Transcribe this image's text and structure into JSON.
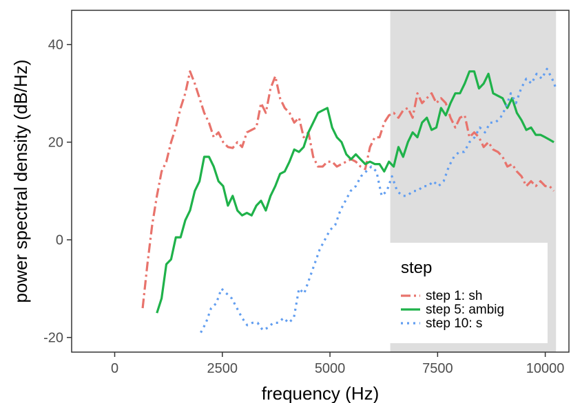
{
  "chart_data": {
    "type": "line",
    "xlabel": "frequency (Hz)",
    "ylabel": "power spectral density (dB/Hz)",
    "xlim": [
      -1000,
      10550
    ],
    "ylim": [
      -23,
      47
    ],
    "x_ticks": [
      0,
      2500,
      5000,
      7500,
      10000
    ],
    "y_ticks": [
      -20,
      0,
      20,
      40
    ],
    "x_tick_labels": [
      "0",
      "2500",
      "5000",
      "7500",
      "10000"
    ],
    "y_tick_labels": [
      "-20",
      "0",
      "20",
      "40"
    ],
    "grid": false,
    "shaded_region": {
      "x_start": 6400,
      "x_end": 10250,
      "color": "#dedede"
    },
    "legend": {
      "title": "step",
      "position": "bottom-right",
      "entries": [
        {
          "label": "step 1: sh",
          "color": "#e8736c",
          "dash": "dashdot"
        },
        {
          "label": "step 5: ambig",
          "color": "#1fb24a",
          "dash": "solid"
        },
        {
          "label": "step 10: s",
          "color": "#629ef0",
          "dash": "dotted"
        }
      ]
    },
    "series": [
      {
        "name": "step 1: sh",
        "color": "#e8736c",
        "dash": "dashdot",
        "points": [
          [
            650,
            -14
          ],
          [
            760,
            -5
          ],
          [
            870,
            3
          ],
          [
            980,
            9
          ],
          [
            1090,
            14
          ],
          [
            1200,
            16
          ],
          [
            1310,
            20
          ],
          [
            1420,
            23
          ],
          [
            1530,
            27
          ],
          [
            1640,
            30
          ],
          [
            1750,
            34.5
          ],
          [
            1860,
            32
          ],
          [
            1970,
            29
          ],
          [
            2080,
            26
          ],
          [
            2190,
            24
          ],
          [
            2300,
            21
          ],
          [
            2410,
            22
          ],
          [
            2520,
            20
          ],
          [
            2630,
            19
          ],
          [
            2740,
            18.8
          ],
          [
            2850,
            20
          ],
          [
            2960,
            19
          ],
          [
            3070,
            22
          ],
          [
            3180,
            22.5
          ],
          [
            3290,
            23
          ],
          [
            3400,
            28
          ],
          [
            3510,
            26
          ],
          [
            3620,
            31
          ],
          [
            3730,
            33.5
          ],
          [
            3840,
            29
          ],
          [
            3950,
            27
          ],
          [
            4060,
            26
          ],
          [
            4170,
            24
          ],
          [
            4280,
            25
          ],
          [
            4390,
            21
          ],
          [
            4500,
            22
          ],
          [
            4610,
            17
          ],
          [
            4720,
            15
          ],
          [
            4830,
            15
          ],
          [
            4940,
            16
          ],
          [
            5050,
            16
          ],
          [
            5160,
            15
          ],
          [
            5270,
            15.5
          ],
          [
            5380,
            16
          ],
          [
            5490,
            16.5
          ],
          [
            5600,
            16
          ],
          [
            5710,
            15
          ],
          [
            5820,
            14.5
          ],
          [
            5930,
            19
          ],
          [
            6040,
            21
          ],
          [
            6150,
            21
          ],
          [
            6260,
            24
          ],
          [
            6370,
            25.5
          ],
          [
            6480,
            26
          ],
          [
            6590,
            25
          ],
          [
            6700,
            26.5
          ],
          [
            6810,
            27
          ],
          [
            6920,
            25
          ],
          [
            7030,
            30
          ],
          [
            7140,
            28
          ],
          [
            7250,
            29
          ],
          [
            7360,
            30
          ],
          [
            7470,
            28
          ],
          [
            7580,
            29
          ],
          [
            7690,
            28
          ],
          [
            7800,
            25
          ],
          [
            7910,
            23
          ],
          [
            8020,
            25
          ],
          [
            8130,
            25.5
          ],
          [
            8240,
            21
          ],
          [
            8350,
            22
          ],
          [
            8460,
            21
          ],
          [
            8570,
            19
          ],
          [
            8680,
            20
          ],
          [
            8790,
            18.5
          ],
          [
            8900,
            18
          ],
          [
            9010,
            17
          ],
          [
            9120,
            15
          ],
          [
            9230,
            15.5
          ],
          [
            9340,
            14
          ],
          [
            9450,
            13
          ],
          [
            9560,
            11
          ],
          [
            9670,
            12
          ],
          [
            9780,
            11
          ],
          [
            9890,
            12
          ],
          [
            10000,
            11
          ],
          [
            10100,
            11
          ],
          [
            10200,
            10
          ]
        ]
      },
      {
        "name": "step 5: ambig",
        "color": "#1fb24a",
        "dash": "solid",
        "points": [
          [
            980,
            -15
          ],
          [
            1090,
            -12
          ],
          [
            1200,
            -5
          ],
          [
            1310,
            -4
          ],
          [
            1420,
            0.5
          ],
          [
            1530,
            0.5
          ],
          [
            1640,
            4
          ],
          [
            1750,
            6
          ],
          [
            1860,
            10
          ],
          [
            1970,
            12
          ],
          [
            2080,
            17
          ],
          [
            2190,
            17
          ],
          [
            2300,
            15
          ],
          [
            2410,
            12
          ],
          [
            2520,
            11
          ],
          [
            2630,
            7
          ],
          [
            2740,
            9
          ],
          [
            2850,
            6
          ],
          [
            2960,
            5
          ],
          [
            3070,
            5.5
          ],
          [
            3180,
            5
          ],
          [
            3290,
            7
          ],
          [
            3400,
            8
          ],
          [
            3510,
            6
          ],
          [
            3620,
            9
          ],
          [
            3730,
            11
          ],
          [
            3840,
            13.5
          ],
          [
            3950,
            14
          ],
          [
            4060,
            16
          ],
          [
            4170,
            18.5
          ],
          [
            4280,
            18
          ],
          [
            4390,
            19
          ],
          [
            4500,
            22
          ],
          [
            4610,
            24
          ],
          [
            4720,
            26
          ],
          [
            4830,
            26.5
          ],
          [
            4940,
            27
          ],
          [
            5050,
            23
          ],
          [
            5160,
            21
          ],
          [
            5270,
            20
          ],
          [
            5380,
            17.5
          ],
          [
            5490,
            16.5
          ],
          [
            5600,
            17.5
          ],
          [
            5710,
            16.5
          ],
          [
            5820,
            15.5
          ],
          [
            5930,
            16
          ],
          [
            6040,
            15.5
          ],
          [
            6150,
            15.5
          ],
          [
            6260,
            14
          ],
          [
            6370,
            16
          ],
          [
            6480,
            15
          ],
          [
            6590,
            19
          ],
          [
            6700,
            17
          ],
          [
            6810,
            20
          ],
          [
            6920,
            22
          ],
          [
            7030,
            21
          ],
          [
            7140,
            24
          ],
          [
            7250,
            25
          ],
          [
            7360,
            22.5
          ],
          [
            7470,
            23
          ],
          [
            7580,
            27
          ],
          [
            7690,
            25.5
          ],
          [
            7800,
            28
          ],
          [
            7910,
            30
          ],
          [
            8020,
            30
          ],
          [
            8130,
            32
          ],
          [
            8240,
            34.5
          ],
          [
            8350,
            34.5
          ],
          [
            8460,
            31
          ],
          [
            8570,
            32
          ],
          [
            8680,
            34
          ],
          [
            8790,
            30
          ],
          [
            8900,
            29.5
          ],
          [
            9010,
            29
          ],
          [
            9120,
            27
          ],
          [
            9230,
            29
          ],
          [
            9340,
            26
          ],
          [
            9450,
            24.5
          ],
          [
            9560,
            22.5
          ],
          [
            9670,
            23
          ],
          [
            9780,
            21.5
          ],
          [
            9890,
            21.5
          ],
          [
            10000,
            21
          ],
          [
            10100,
            20.5
          ],
          [
            10200,
            20
          ]
        ]
      },
      {
        "name": "step 10: s",
        "color": "#629ef0",
        "dash": "dotted",
        "points": [
          [
            2000,
            -19
          ],
          [
            2120,
            -17
          ],
          [
            2240,
            -14
          ],
          [
            2360,
            -13
          ],
          [
            2480,
            -10
          ],
          [
            2600,
            -11
          ],
          [
            2720,
            -12
          ],
          [
            2840,
            -14
          ],
          [
            2960,
            -16
          ],
          [
            3080,
            -17.5
          ],
          [
            3200,
            -17
          ],
          [
            3320,
            -17
          ],
          [
            3440,
            -18.5
          ],
          [
            3560,
            -18
          ],
          [
            3680,
            -17
          ],
          [
            3800,
            -17
          ],
          [
            3920,
            -16
          ],
          [
            4040,
            -17
          ],
          [
            4160,
            -16
          ],
          [
            4280,
            -10
          ],
          [
            4400,
            -11
          ],
          [
            4520,
            -8
          ],
          [
            4640,
            -5
          ],
          [
            4760,
            -2
          ],
          [
            4880,
            0
          ],
          [
            5000,
            2
          ],
          [
            5120,
            3
          ],
          [
            5240,
            6
          ],
          [
            5360,
            8
          ],
          [
            5480,
            10
          ],
          [
            5600,
            11
          ],
          [
            5720,
            13
          ],
          [
            5840,
            14
          ],
          [
            5960,
            15
          ],
          [
            6080,
            14
          ],
          [
            6200,
            9
          ],
          [
            6320,
            10
          ],
          [
            6440,
            13
          ],
          [
            6560,
            10
          ],
          [
            6680,
            9
          ],
          [
            6800,
            9
          ],
          [
            6920,
            10
          ],
          [
            7040,
            10
          ],
          [
            7160,
            11
          ],
          [
            7280,
            11
          ],
          [
            7400,
            12
          ],
          [
            7520,
            11
          ],
          [
            7640,
            12
          ],
          [
            7760,
            15
          ],
          [
            7880,
            17
          ],
          [
            8000,
            18
          ],
          [
            8120,
            18
          ],
          [
            8240,
            20
          ],
          [
            8360,
            21
          ],
          [
            8480,
            23
          ],
          [
            8600,
            22
          ],
          [
            8720,
            24
          ],
          [
            8840,
            24
          ],
          [
            8960,
            25
          ],
          [
            9080,
            27
          ],
          [
            9200,
            30
          ],
          [
            9320,
            28
          ],
          [
            9440,
            31
          ],
          [
            9560,
            33
          ],
          [
            9680,
            32
          ],
          [
            9800,
            34
          ],
          [
            9920,
            33
          ],
          [
            10040,
            35
          ],
          [
            10160,
            33
          ],
          [
            10250,
            31
          ]
        ]
      }
    ]
  }
}
